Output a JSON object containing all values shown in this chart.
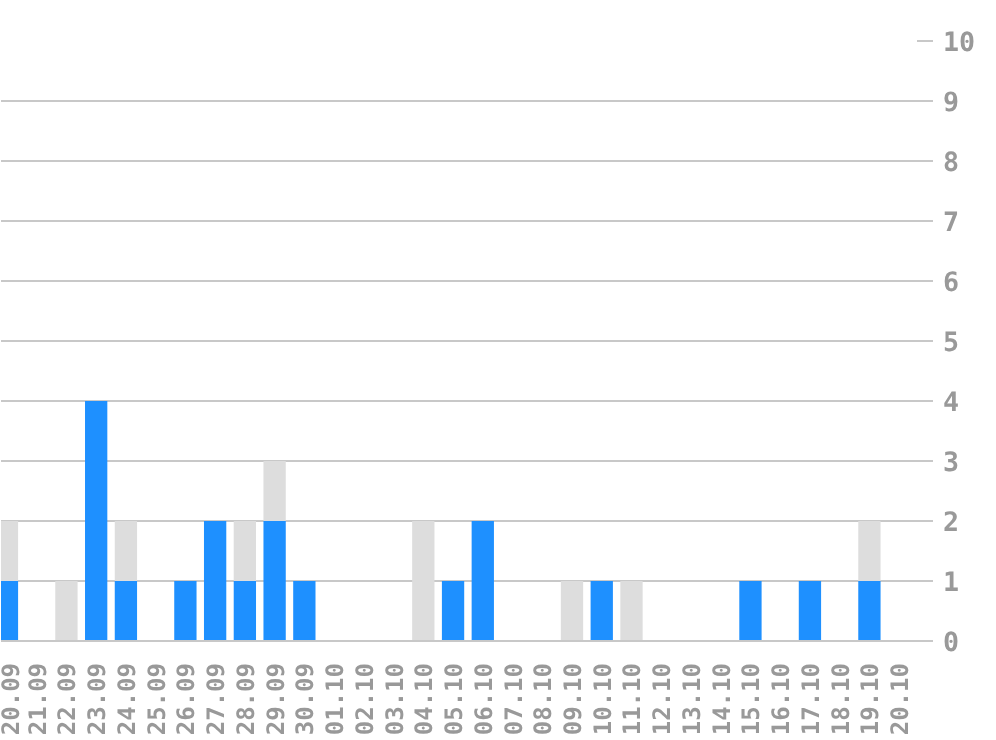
{
  "chart_data": {
    "type": "bar",
    "stacked": true,
    "categories": [
      "20.09",
      "21.09",
      "22.09",
      "23.09",
      "24.09",
      "25.09",
      "26.09",
      "27.09",
      "28.09",
      "29.09",
      "30.09",
      "01.10",
      "02.10",
      "03.10",
      "04.10",
      "05.10",
      "06.10",
      "07.10",
      "08.10",
      "09.10",
      "10.10",
      "11.10",
      "12.10",
      "13.10",
      "14.10",
      "15.10",
      "16.10",
      "17.10",
      "18.10",
      "19.10",
      "20.10"
    ],
    "series": [
      {
        "color": "#1e90ff",
        "values": [
          1,
          0,
          0,
          4,
          1,
          0,
          1,
          2,
          1,
          2,
          1,
          0,
          0,
          0,
          0,
          1,
          2,
          0,
          0,
          0,
          1,
          0,
          0,
          0,
          0,
          1,
          0,
          1,
          0,
          1,
          0
        ]
      },
      {
        "color": "#dddddd",
        "values": [
          1,
          0,
          1,
          0,
          1,
          0,
          0,
          0,
          1,
          1,
          0,
          0,
          0,
          0,
          2,
          0,
          0,
          0,
          0,
          1,
          0,
          1,
          0,
          0,
          0,
          0,
          0,
          0,
          0,
          1,
          0
        ]
      }
    ],
    "ylim": [
      0,
      10
    ],
    "yticks": [
      0,
      1,
      2,
      3,
      4,
      5,
      6,
      7,
      8,
      9,
      10
    ],
    "grid": "y"
  }
}
